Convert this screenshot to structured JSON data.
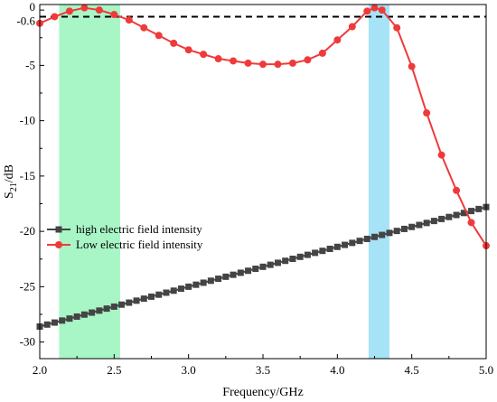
{
  "chart_data": {
    "type": "line",
    "xlabel": "Frequency/GHz",
    "ylabel_base": "S",
    "ylabel_sub": "21",
    "ylabel_unit": "/dB",
    "xlim": [
      2.0,
      5.0
    ],
    "ylim": [
      -31.5,
      0.5
    ],
    "x_ticks": [
      "2.0",
      "2.5",
      "3.0",
      "3.5",
      "4.0",
      "4.5",
      "5.0"
    ],
    "x_tick_values": [
      2.0,
      2.5,
      3.0,
      3.5,
      4.0,
      4.5,
      5.0
    ],
    "y_ticks": [
      "0",
      "-0.6",
      "-5",
      "-10",
      "-15",
      "-20",
      "-25",
      "-30"
    ],
    "y_tick_values": [
      0,
      -0.6,
      -5,
      -10,
      -15,
      -20,
      -25,
      -30
    ],
    "reference_line": {
      "y": -0.6,
      "style": "dashed",
      "color": "#000000"
    },
    "bands": [
      {
        "x_start": 2.13,
        "x_end": 2.54,
        "color": "#a8f5c6"
      },
      {
        "x_start": 4.21,
        "x_end": 4.35,
        "color": "#a6e3f6"
      }
    ],
    "legend": {
      "placement": "lower-left"
    },
    "series": [
      {
        "name": "high electric field intensity",
        "color": "#444444",
        "marker": "square",
        "x": [
          2.0,
          2.05,
          2.1,
          2.15,
          2.2,
          2.25,
          2.3,
          2.35,
          2.4,
          2.45,
          2.5,
          2.55,
          2.6,
          2.65,
          2.7,
          2.75,
          2.8,
          2.85,
          2.9,
          2.95,
          3.0,
          3.05,
          3.1,
          3.15,
          3.2,
          3.25,
          3.3,
          3.35,
          3.4,
          3.45,
          3.5,
          3.55,
          3.6,
          3.65,
          3.7,
          3.75,
          3.8,
          3.85,
          3.9,
          3.95,
          4.0,
          4.05,
          4.1,
          4.15,
          4.2,
          4.25,
          4.3,
          4.35,
          4.4,
          4.45,
          4.5,
          4.55,
          4.6,
          4.65,
          4.7,
          4.75,
          4.8,
          4.85,
          4.9,
          4.95,
          5.0
        ],
        "values": [
          -28.6,
          -28.42,
          -28.24,
          -28.06,
          -27.88,
          -27.7,
          -27.52,
          -27.34,
          -27.16,
          -26.98,
          -26.8,
          -26.62,
          -26.44,
          -26.26,
          -26.08,
          -25.9,
          -25.72,
          -25.54,
          -25.36,
          -25.18,
          -25.0,
          -24.82,
          -24.64,
          -24.46,
          -24.28,
          -24.1,
          -23.92,
          -23.74,
          -23.56,
          -23.38,
          -23.2,
          -23.02,
          -22.84,
          -22.66,
          -22.48,
          -22.3,
          -22.12,
          -21.94,
          -21.76,
          -21.58,
          -21.4,
          -21.22,
          -21.04,
          -20.86,
          -20.68,
          -20.5,
          -20.32,
          -20.14,
          -19.96,
          -19.78,
          -19.6,
          -19.42,
          -19.24,
          -19.06,
          -18.88,
          -18.7,
          -18.52,
          -18.34,
          -18.16,
          -17.98,
          -17.8
        ]
      },
      {
        "name": "Low electric field intensity",
        "color": "#f03a3a",
        "marker": "circle",
        "x": [
          2.0,
          2.1,
          2.2,
          2.3,
          2.4,
          2.5,
          2.6,
          2.7,
          2.8,
          2.9,
          3.0,
          3.1,
          3.2,
          3.3,
          3.4,
          3.5,
          3.6,
          3.7,
          3.8,
          3.9,
          4.0,
          4.1,
          4.2,
          4.25,
          4.3,
          4.4,
          4.5,
          4.6,
          4.7,
          4.8,
          4.9,
          5.0
        ],
        "values": [
          -1.2,
          -0.6,
          -0.1,
          0.2,
          0.0,
          -0.4,
          -0.9,
          -1.6,
          -2.3,
          -3.0,
          -3.6,
          -4.0,
          -4.4,
          -4.6,
          -4.8,
          -4.9,
          -4.9,
          -4.8,
          -4.5,
          -3.9,
          -2.7,
          -1.5,
          -0.1,
          0.2,
          0.0,
          -1.6,
          -5.1,
          -9.3,
          -13.1,
          -16.3,
          -19.2,
          -21.3
        ]
      }
    ]
  }
}
